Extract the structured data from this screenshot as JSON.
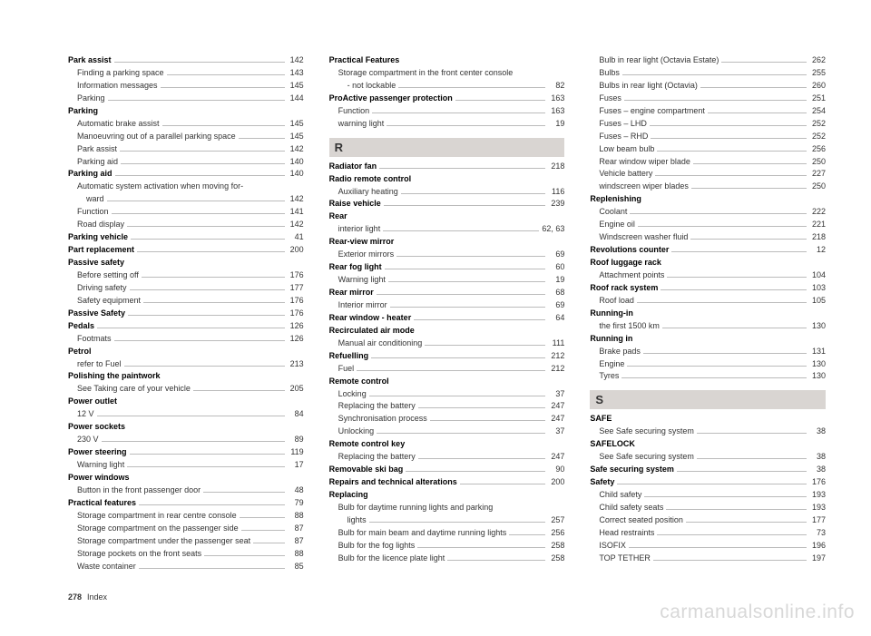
{
  "page": {
    "number": "278",
    "section": "Index"
  },
  "watermark": "carmanualsonline.info",
  "columns": [
    [
      {
        "t": "bold",
        "label": "Park assist",
        "page": "142"
      },
      {
        "t": "sub",
        "label": "Finding a parking space",
        "page": "143"
      },
      {
        "t": "sub",
        "label": "Information messages",
        "page": "145"
      },
      {
        "t": "sub",
        "label": "Parking",
        "page": "144"
      },
      {
        "t": "bold",
        "label": "Parking",
        "page": ""
      },
      {
        "t": "sub",
        "label": "Automatic brake assist",
        "page": "145"
      },
      {
        "t": "sub",
        "label": "Manoeuvring out of a parallel parking space",
        "page": "145"
      },
      {
        "t": "sub",
        "label": "Park assist",
        "page": "142"
      },
      {
        "t": "sub",
        "label": "Parking aid",
        "page": "140"
      },
      {
        "t": "bold",
        "label": "Parking aid",
        "page": "140"
      },
      {
        "t": "sub",
        "label": "Automatic system activation when moving for-",
        "page": ""
      },
      {
        "t": "subsub",
        "label": "ward",
        "page": "142"
      },
      {
        "t": "sub",
        "label": "Function",
        "page": "141"
      },
      {
        "t": "sub",
        "label": "Road display",
        "page": "142"
      },
      {
        "t": "bold",
        "label": "Parking vehicle",
        "page": "41"
      },
      {
        "t": "bold",
        "label": "Part replacement",
        "page": "200"
      },
      {
        "t": "bold",
        "label": "Passive safety",
        "page": ""
      },
      {
        "t": "sub",
        "label": "Before setting off",
        "page": "176"
      },
      {
        "t": "sub",
        "label": "Driving safety",
        "page": "177"
      },
      {
        "t": "sub",
        "label": "Safety equipment",
        "page": "176"
      },
      {
        "t": "bold",
        "label": "Passive Safety",
        "page": "176"
      },
      {
        "t": "bold",
        "label": "Pedals",
        "page": "126"
      },
      {
        "t": "sub",
        "label": "Footmats",
        "page": "126"
      },
      {
        "t": "bold",
        "label": "Petrol",
        "page": ""
      },
      {
        "t": "sub",
        "label": "refer to Fuel",
        "page": "213"
      },
      {
        "t": "bold",
        "label": "Polishing the paintwork",
        "page": ""
      },
      {
        "t": "sub",
        "label": "See Taking care of your vehicle",
        "page": "205"
      },
      {
        "t": "bold",
        "label": "Power outlet",
        "page": ""
      },
      {
        "t": "sub",
        "label": "12 V",
        "page": "84"
      },
      {
        "t": "bold",
        "label": "Power sockets",
        "page": ""
      },
      {
        "t": "sub",
        "label": "230 V",
        "page": "89"
      },
      {
        "t": "bold",
        "label": "Power steering",
        "page": "119"
      },
      {
        "t": "sub",
        "label": "Warning light",
        "page": "17"
      },
      {
        "t": "bold",
        "label": "Power windows",
        "page": ""
      },
      {
        "t": "sub",
        "label": "Button in the front passenger door",
        "page": "48"
      },
      {
        "t": "bold",
        "label": "Practical features",
        "page": "79"
      },
      {
        "t": "sub",
        "label": "Storage compartment in rear centre console",
        "page": "88"
      },
      {
        "t": "sub",
        "label": "Storage compartment on the passenger side",
        "page": "87"
      },
      {
        "t": "sub",
        "label": "Storage compartment under the passenger seat",
        "page": "87"
      },
      {
        "t": "sub",
        "label": "Storage pockets on the front seats",
        "page": "88"
      },
      {
        "t": "sub",
        "label": "Waste container",
        "page": "85"
      }
    ],
    [
      {
        "t": "bold",
        "label": "Practical Features",
        "page": ""
      },
      {
        "t": "sub",
        "label": "Storage compartment in the front center console",
        "page": ""
      },
      {
        "t": "subsub",
        "label": "- not lockable",
        "page": "82"
      },
      {
        "t": "bold",
        "label": "ProActive passenger protection",
        "page": "163"
      },
      {
        "t": "sub",
        "label": "Function",
        "page": "163"
      },
      {
        "t": "sub",
        "label": "warning light",
        "page": "19"
      },
      {
        "t": "letter",
        "label": "R"
      },
      {
        "t": "bold",
        "label": "Radiator fan",
        "page": "218"
      },
      {
        "t": "bold",
        "label": "Radio remote control",
        "page": ""
      },
      {
        "t": "sub",
        "label": "Auxiliary heating",
        "page": "116"
      },
      {
        "t": "bold",
        "label": "Raise vehicle",
        "page": "239"
      },
      {
        "t": "bold",
        "label": "Rear",
        "page": ""
      },
      {
        "t": "sub",
        "label": "interior light",
        "page": "62, 63"
      },
      {
        "t": "bold",
        "label": "Rear-view mirror",
        "page": ""
      },
      {
        "t": "sub",
        "label": "Exterior mirrors",
        "page": "69"
      },
      {
        "t": "bold",
        "label": "Rear fog light",
        "page": "60"
      },
      {
        "t": "sub",
        "label": "Warning light",
        "page": "19"
      },
      {
        "t": "bold",
        "label": "Rear mirror",
        "page": "68"
      },
      {
        "t": "sub",
        "label": "Interior mirror",
        "page": "69"
      },
      {
        "t": "bold",
        "label": "Rear window - heater",
        "page": "64"
      },
      {
        "t": "bold",
        "label": "Recirculated air mode",
        "page": ""
      },
      {
        "t": "sub",
        "label": "Manual air conditioning",
        "page": "111"
      },
      {
        "t": "bold",
        "label": "Refuelling",
        "page": "212"
      },
      {
        "t": "sub",
        "label": "Fuel",
        "page": "212"
      },
      {
        "t": "bold",
        "label": "Remote control",
        "page": ""
      },
      {
        "t": "sub",
        "label": "Locking",
        "page": "37"
      },
      {
        "t": "sub",
        "label": "Replacing the battery",
        "page": "247"
      },
      {
        "t": "sub",
        "label": "Synchronisation process",
        "page": "247"
      },
      {
        "t": "sub",
        "label": "Unlocking",
        "page": "37"
      },
      {
        "t": "bold",
        "label": "Remote control key",
        "page": ""
      },
      {
        "t": "sub",
        "label": "Replacing the battery",
        "page": "247"
      },
      {
        "t": "bold",
        "label": "Removable ski bag",
        "page": "90"
      },
      {
        "t": "bold",
        "label": "Repairs and technical alterations",
        "page": "200"
      },
      {
        "t": "bold",
        "label": "Replacing",
        "page": ""
      },
      {
        "t": "sub",
        "label": "Bulb for daytime running lights and parking",
        "page": ""
      },
      {
        "t": "subsub",
        "label": "lights",
        "page": "257"
      },
      {
        "t": "sub",
        "label": "Bulb for main beam and daytime running lights",
        "page": "256"
      },
      {
        "t": "sub",
        "label": "Bulb for the fog lights",
        "page": "258"
      },
      {
        "t": "sub",
        "label": "Bulb for the licence plate light",
        "page": "258"
      }
    ],
    [
      {
        "t": "sub",
        "label": "Bulb in rear light (Octavia Estate)",
        "page": "262"
      },
      {
        "t": "sub",
        "label": "Bulbs",
        "page": "255"
      },
      {
        "t": "sub",
        "label": "Bulbs in rear light (Octavia)",
        "page": "260"
      },
      {
        "t": "sub",
        "label": "Fuses",
        "page": "251"
      },
      {
        "t": "sub",
        "label": "Fuses – engine compartment",
        "page": "254"
      },
      {
        "t": "sub",
        "label": "Fuses – LHD",
        "page": "252"
      },
      {
        "t": "sub",
        "label": "Fuses – RHD",
        "page": "252"
      },
      {
        "t": "sub",
        "label": "Low beam bulb",
        "page": "256"
      },
      {
        "t": "sub",
        "label": "Rear window wiper blade",
        "page": "250"
      },
      {
        "t": "sub",
        "label": "Vehicle battery",
        "page": "227"
      },
      {
        "t": "sub",
        "label": "windscreen wiper blades",
        "page": "250"
      },
      {
        "t": "bold",
        "label": "Replenishing",
        "page": ""
      },
      {
        "t": "sub",
        "label": "Coolant",
        "page": "222"
      },
      {
        "t": "sub",
        "label": "Engine oil",
        "page": "221"
      },
      {
        "t": "sub",
        "label": "Windscreen washer fluid",
        "page": "218"
      },
      {
        "t": "bold",
        "label": "Revolutions counter",
        "page": "12"
      },
      {
        "t": "bold",
        "label": "Roof luggage rack",
        "page": ""
      },
      {
        "t": "sub",
        "label": "Attachment points",
        "page": "104"
      },
      {
        "t": "bold",
        "label": "Roof rack system",
        "page": "103"
      },
      {
        "t": "sub",
        "label": "Roof load",
        "page": "105"
      },
      {
        "t": "bold",
        "label": "Running-in",
        "page": ""
      },
      {
        "t": "sub",
        "label": "the first 1500 km",
        "page": "130"
      },
      {
        "t": "bold",
        "label": "Running in",
        "page": ""
      },
      {
        "t": "sub",
        "label": "Brake pads",
        "page": "131"
      },
      {
        "t": "sub",
        "label": "Engine",
        "page": "130"
      },
      {
        "t": "sub",
        "label": "Tyres",
        "page": "130"
      },
      {
        "t": "letter",
        "label": "S"
      },
      {
        "t": "bold",
        "label": "SAFE",
        "page": ""
      },
      {
        "t": "sub",
        "label": "See Safe securing system",
        "page": "38"
      },
      {
        "t": "bold",
        "label": "SAFELOCK",
        "page": ""
      },
      {
        "t": "sub",
        "label": "See Safe securing system",
        "page": "38"
      },
      {
        "t": "bold",
        "label": "Safe securing system",
        "page": "38"
      },
      {
        "t": "bold",
        "label": "Safety",
        "page": "176"
      },
      {
        "t": "sub",
        "label": "Child safety",
        "page": "193"
      },
      {
        "t": "sub",
        "label": "Child safety seats",
        "page": "193"
      },
      {
        "t": "sub",
        "label": "Correct seated position",
        "page": "177"
      },
      {
        "t": "sub",
        "label": "Head restraints",
        "page": "73"
      },
      {
        "t": "sub",
        "label": "ISOFIX",
        "page": "196"
      },
      {
        "t": "sub",
        "label": "TOP TETHER",
        "page": "197"
      }
    ]
  ]
}
